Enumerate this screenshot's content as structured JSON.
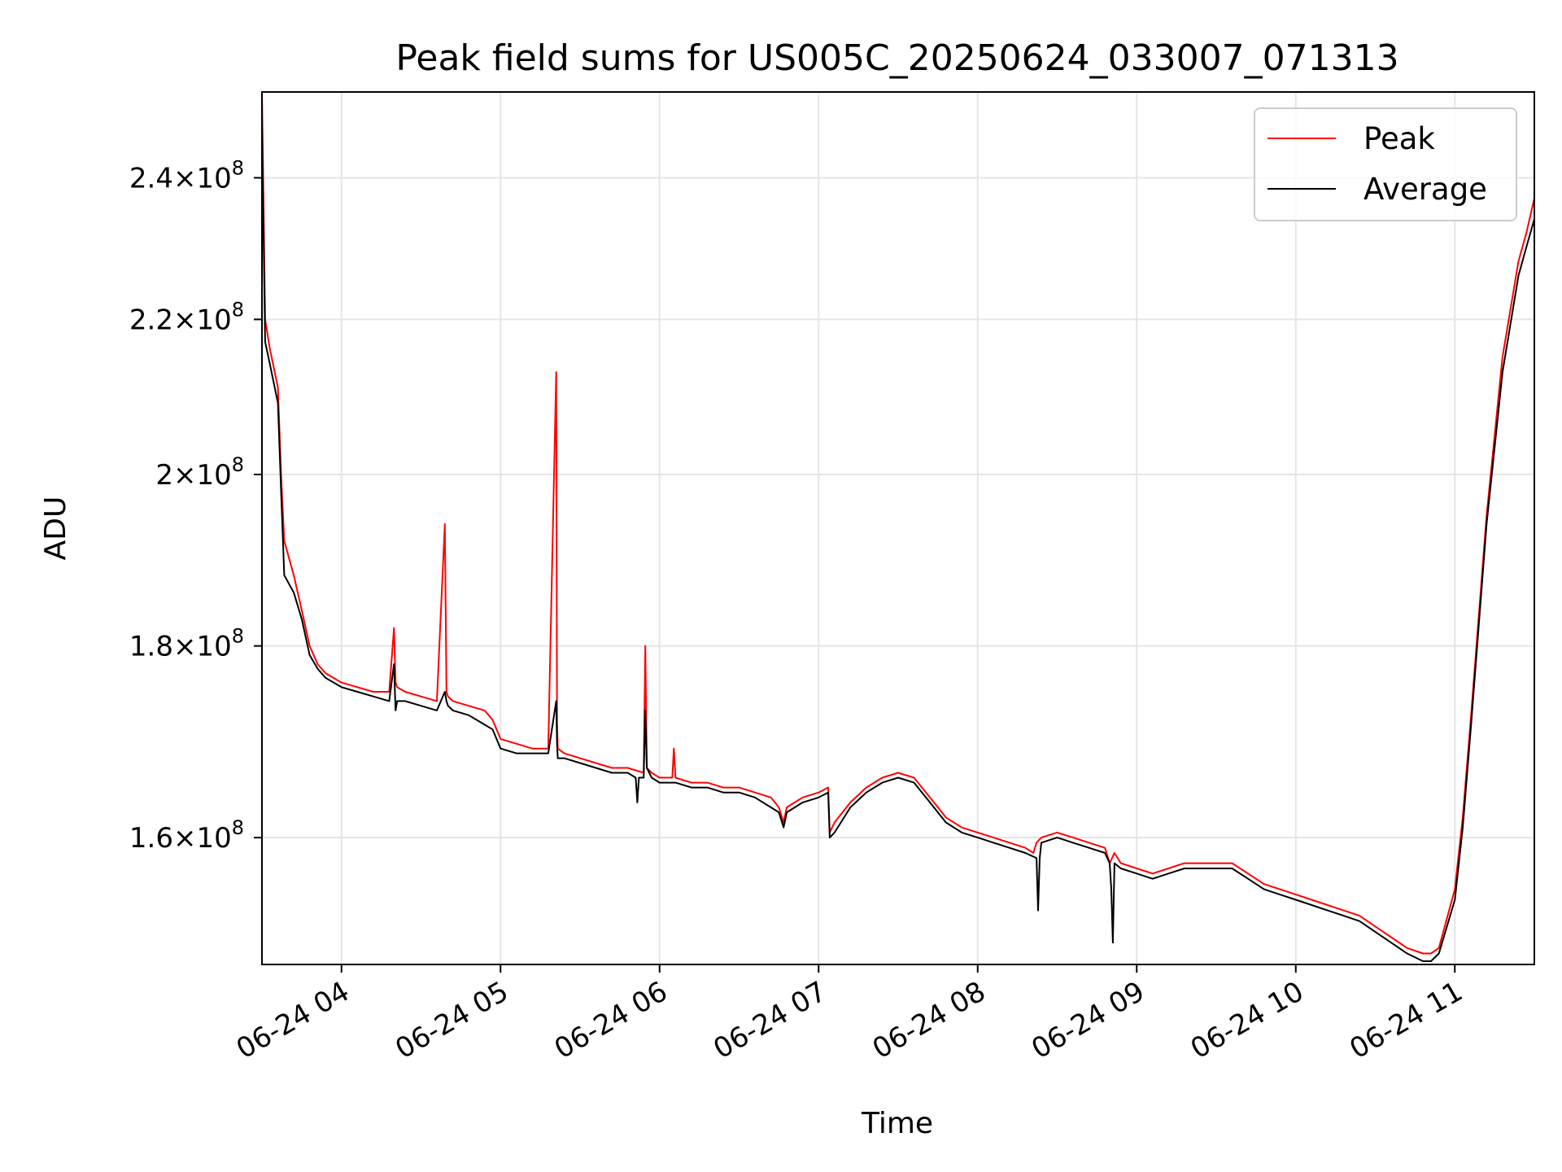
{
  "chart_data": {
    "type": "line",
    "title": "Peak field sums for US005C_20250624_033007_071313",
    "xlabel": "Time",
    "ylabel": "ADU",
    "x_ticks": [
      "06-24 04",
      "06-24 05",
      "06-24 06",
      "06-24 07",
      "06-24 08",
      "06-24 09",
      "06-24 10",
      "06-24 11"
    ],
    "x_tick_hours": [
      4,
      5,
      6,
      7,
      8,
      9,
      10,
      11
    ],
    "xlim": [
      3.5,
      11.5
    ],
    "y_scale": "log",
    "ylim": [
      148000000,
      253000000
    ],
    "y_ticks": [
      {
        "value": 160000000,
        "mant": "1.6",
        "exp": "8"
      },
      {
        "value": 180000000,
        "mant": "1.8",
        "exp": "8"
      },
      {
        "value": 200000000,
        "mant": "2",
        "exp": "8"
      },
      {
        "value": 220000000,
        "mant": "2.2",
        "exp": "8"
      },
      {
        "value": 240000000,
        "mant": "2.4",
        "exp": "8"
      }
    ],
    "grid": true,
    "legend_position": "top-right",
    "series": [
      {
        "name": "Peak",
        "color": "#ff0000",
        "x": [
          3.5,
          3.52,
          3.55,
          3.6,
          3.62,
          3.64,
          3.7,
          3.75,
          3.8,
          3.85,
          3.9,
          4.0,
          4.1,
          4.2,
          4.3,
          4.33,
          4.34,
          4.35,
          4.4,
          4.5,
          4.6,
          4.65,
          4.66,
          4.67,
          4.7,
          4.8,
          4.9,
          4.95,
          5.0,
          5.1,
          5.2,
          5.3,
          5.35,
          5.355,
          5.36,
          5.4,
          5.5,
          5.6,
          5.7,
          5.8,
          5.9,
          5.91,
          5.92,
          5.95,
          6.0,
          6.08,
          6.09,
          6.1,
          6.2,
          6.3,
          6.4,
          6.5,
          6.6,
          6.7,
          6.75,
          6.78,
          6.8,
          6.85,
          6.9,
          7.0,
          7.06,
          7.07,
          7.1,
          7.2,
          7.3,
          7.4,
          7.5,
          7.6,
          7.7,
          7.8,
          7.9,
          8.0,
          8.1,
          8.2,
          8.3,
          8.35,
          8.37,
          8.4,
          8.5,
          8.6,
          8.7,
          8.8,
          8.83,
          8.86,
          8.9,
          9.0,
          9.1,
          9.2,
          9.3,
          9.4,
          9.5,
          9.6,
          9.7,
          9.8,
          9.9,
          10.0,
          10.1,
          10.2,
          10.3,
          10.4,
          10.5,
          10.6,
          10.7,
          10.8,
          10.85,
          10.9,
          11.0,
          11.05,
          11.1,
          11.2,
          11.3,
          11.4,
          11.45,
          11.5
        ],
        "y": [
          253000000,
          220000000,
          216000000,
          211000000,
          200000000,
          192000000,
          188000000,
          184000000,
          180000000,
          178000000,
          177000000,
          176000000,
          175500000,
          175000000,
          175000000,
          182000000,
          176000000,
          175500000,
          175000000,
          174500000,
          174000000,
          194000000,
          175000000,
          174500000,
          174000000,
          173500000,
          173000000,
          172000000,
          170000000,
          169500000,
          169000000,
          169000000,
          213000000,
          172000000,
          169000000,
          168500000,
          168000000,
          167500000,
          167000000,
          167000000,
          166500000,
          180000000,
          167000000,
          166500000,
          166000000,
          166000000,
          169000000,
          166000000,
          165500000,
          165500000,
          165000000,
          165000000,
          164500000,
          164000000,
          163000000,
          161500000,
          163000000,
          163500000,
          164000000,
          164500000,
          165000000,
          160500000,
          161500000,
          163500000,
          165000000,
          166000000,
          166500000,
          166000000,
          164000000,
          162000000,
          161000000,
          160500000,
          160000000,
          159500000,
          159000000,
          158500000,
          159500000,
          160000000,
          160500000,
          160000000,
          159500000,
          159000000,
          157500000,
          158500000,
          157500000,
          157000000,
          156500000,
          157000000,
          157500000,
          157500000,
          157500000,
          157500000,
          156500000,
          155500000,
          155000000,
          154500000,
          154000000,
          153500000,
          153000000,
          152500000,
          151500000,
          150500000,
          149500000,
          149000000,
          149000000,
          149500000,
          155000000,
          162000000,
          172000000,
          195000000,
          215000000,
          228000000,
          232000000,
          237000000
        ]
      },
      {
        "name": "Average",
        "color": "#000000",
        "x": [
          3.5,
          3.52,
          3.55,
          3.6,
          3.62,
          3.64,
          3.7,
          3.75,
          3.8,
          3.85,
          3.9,
          4.0,
          4.1,
          4.2,
          4.3,
          4.33,
          4.34,
          4.35,
          4.4,
          4.5,
          4.6,
          4.65,
          4.66,
          4.67,
          4.7,
          4.8,
          4.9,
          4.95,
          5.0,
          5.1,
          5.2,
          5.3,
          5.35,
          5.355,
          5.36,
          5.4,
          5.5,
          5.6,
          5.7,
          5.8,
          5.85,
          5.86,
          5.87,
          5.9,
          5.91,
          5.92,
          5.95,
          6.0,
          6.1,
          6.2,
          6.3,
          6.4,
          6.5,
          6.6,
          6.7,
          6.75,
          6.78,
          6.8,
          6.85,
          6.9,
          7.0,
          7.06,
          7.07,
          7.1,
          7.2,
          7.3,
          7.4,
          7.5,
          7.6,
          7.7,
          7.8,
          7.9,
          8.0,
          8.1,
          8.2,
          8.3,
          8.37,
          8.38,
          8.39,
          8.4,
          8.5,
          8.6,
          8.7,
          8.8,
          8.83,
          8.84,
          8.85,
          8.86,
          8.9,
          9.0,
          9.1,
          9.2,
          9.3,
          9.4,
          9.5,
          9.6,
          9.7,
          9.8,
          9.9,
          10.0,
          10.1,
          10.2,
          10.3,
          10.4,
          10.5,
          10.6,
          10.7,
          10.8,
          10.85,
          10.9,
          11.0,
          11.05,
          11.1,
          11.2,
          11.3,
          11.4,
          11.45,
          11.5
        ],
        "y": [
          248000000,
          217000000,
          214000000,
          209000000,
          198000000,
          188000000,
          186000000,
          183000000,
          179000000,
          177500000,
          176500000,
          175500000,
          175000000,
          174500000,
          174000000,
          178000000,
          173000000,
          174000000,
          174000000,
          173500000,
          173000000,
          175000000,
          174000000,
          173500000,
          173000000,
          172500000,
          171500000,
          171000000,
          169000000,
          168500000,
          168500000,
          168500000,
          174000000,
          169500000,
          168000000,
          168000000,
          167500000,
          167000000,
          166500000,
          166500000,
          166000000,
          163500000,
          166000000,
          166000000,
          173000000,
          167000000,
          166000000,
          165500000,
          165500000,
          165000000,
          165000000,
          164500000,
          164500000,
          164000000,
          163000000,
          162500000,
          161000000,
          162500000,
          163000000,
          163500000,
          164000000,
          164500000,
          160000000,
          160500000,
          163000000,
          164500000,
          165500000,
          166000000,
          165500000,
          163500000,
          161500000,
          160500000,
          160000000,
          159500000,
          159000000,
          158500000,
          158000000,
          153000000,
          158000000,
          159500000,
          160000000,
          159500000,
          159000000,
          158500000,
          157500000,
          155000000,
          150000000,
          157500000,
          157000000,
          156500000,
          156000000,
          156500000,
          157000000,
          157000000,
          157000000,
          157000000,
          156000000,
          155000000,
          154500000,
          154000000,
          153500000,
          153000000,
          152500000,
          152000000,
          151000000,
          150000000,
          149000000,
          148300000,
          148300000,
          149000000,
          154000000,
          161000000,
          171000000,
          194000000,
          213000000,
          226000000,
          230000000,
          234000000
        ]
      }
    ]
  }
}
